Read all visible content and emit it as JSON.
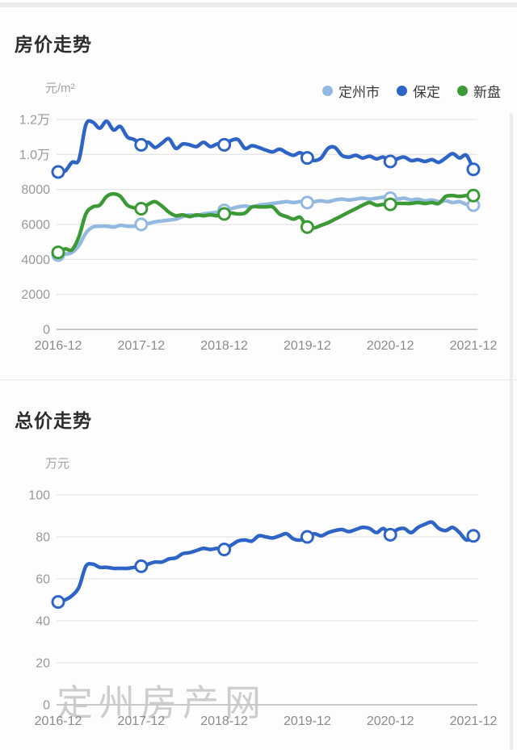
{
  "watermark": "定州房产网",
  "chart_data": [
    {
      "type": "line",
      "title": "房价走势",
      "y_unit": "元/m²",
      "x_tick_labels": [
        "2016-12",
        "2017-12",
        "2018-12",
        "2019-12",
        "2020-12",
        "2021-12"
      ],
      "y_ticks": [
        {
          "value": 0,
          "label": "0"
        },
        {
          "value": 2000,
          "label": "2000"
        },
        {
          "value": 4000,
          "label": "4000"
        },
        {
          "value": 6000,
          "label": "6000"
        },
        {
          "value": 8000,
          "label": "8000"
        },
        {
          "value": 10000,
          "label": "1.0万"
        },
        {
          "value": 12000,
          "label": "1.2万"
        }
      ],
      "ylim": [
        0,
        12000
      ],
      "grid": true,
      "legend_position": "top-right",
      "marker_every": 12,
      "x_note": "monthly points from 2016-12 to 2021-12",
      "series": [
        {
          "name": "定州市",
          "color": "#94b9e0",
          "values": [
            4250,
            4300,
            4400,
            4800,
            5500,
            5850,
            5900,
            5900,
            5850,
            5950,
            5900,
            5900,
            6000,
            6050,
            6150,
            6200,
            6250,
            6300,
            6450,
            6550,
            6500,
            6600,
            6650,
            6700,
            6800,
            6900,
            7000,
            7050,
            7000,
            7100,
            7150,
            7200,
            7250,
            7300,
            7250,
            7300,
            7250,
            7300,
            7350,
            7300,
            7400,
            7450,
            7400,
            7450,
            7500,
            7450,
            7500,
            7550,
            7500,
            7450,
            7500,
            7400,
            7450,
            7350,
            7400,
            7300,
            7350,
            7250,
            7300,
            7150,
            7100
          ]
        },
        {
          "name": "保定",
          "color": "#2d64c6",
          "values": [
            9000,
            9050,
            9550,
            9700,
            11700,
            11850,
            11500,
            11900,
            11400,
            11600,
            11000,
            10850,
            10550,
            10700,
            10400,
            10650,
            10900,
            10350,
            10600,
            10550,
            10450,
            10700,
            10450,
            10600,
            10550,
            10800,
            10850,
            10350,
            10500,
            10400,
            10250,
            10150,
            10300,
            10100,
            9950,
            10100,
            9800,
            9650,
            9800,
            10350,
            10400,
            9950,
            9850,
            9950,
            9800,
            9900,
            9750,
            9850,
            9600,
            9750,
            9850,
            9650,
            9700,
            9600,
            9700,
            9550,
            9800,
            10050,
            9800,
            9950,
            9150
          ]
        },
        {
          "name": "新盘",
          "color": "#3b9a35",
          "values": [
            4400,
            4600,
            4550,
            5300,
            6600,
            7000,
            7100,
            7600,
            7750,
            7600,
            7100,
            6950,
            6900,
            7150,
            7300,
            7050,
            6700,
            6500,
            6550,
            6450,
            6550,
            6500,
            6550,
            6500,
            6600,
            6650,
            6600,
            6650,
            7000,
            7000,
            7000,
            7000,
            6600,
            6450,
            6300,
            6400,
            5850,
            5800,
            5950,
            6100,
            6300,
            6500,
            6700,
            6900,
            7100,
            7250,
            7100,
            7150,
            7150,
            7200,
            7200,
            7200,
            7250,
            7200,
            7250,
            7200,
            7600,
            7650,
            7600,
            7650,
            7650
          ]
        }
      ]
    },
    {
      "type": "line",
      "title": "总价走势",
      "y_unit": "万元",
      "x_tick_labels": [
        "2016-12",
        "2017-12",
        "2018-12",
        "2019-12",
        "2020-12",
        "2021-12"
      ],
      "y_ticks": [
        {
          "value": 0,
          "label": "0"
        },
        {
          "value": 20,
          "label": "20"
        },
        {
          "value": 40,
          "label": "40"
        },
        {
          "value": 60,
          "label": "60"
        },
        {
          "value": 80,
          "label": "80"
        },
        {
          "value": 100,
          "label": "100"
        }
      ],
      "ylim": [
        0,
        100
      ],
      "grid": true,
      "legend_position": "none",
      "marker_every": 12,
      "x_note": "monthly points from 2016-12 to 2021-12",
      "series": [
        {
          "name": "总价",
          "color": "#2d64c6",
          "values": [
            49,
            50,
            52,
            56,
            66,
            67,
            65.5,
            65.5,
            65,
            65,
            65,
            65.5,
            66,
            67,
            68,
            68,
            69.5,
            70,
            72,
            72.5,
            73.5,
            74.5,
            74,
            74.5,
            74,
            76,
            78,
            78.5,
            78,
            80.5,
            80,
            79.5,
            80.5,
            81.5,
            79,
            78.5,
            80,
            81.5,
            80.5,
            82,
            83,
            83.5,
            82.5,
            83.5,
            84.5,
            84,
            82,
            84,
            81,
            83.5,
            84,
            82,
            84.5,
            86,
            87,
            84,
            83,
            84.5,
            82,
            78.5,
            80.5
          ]
        }
      ]
    }
  ]
}
